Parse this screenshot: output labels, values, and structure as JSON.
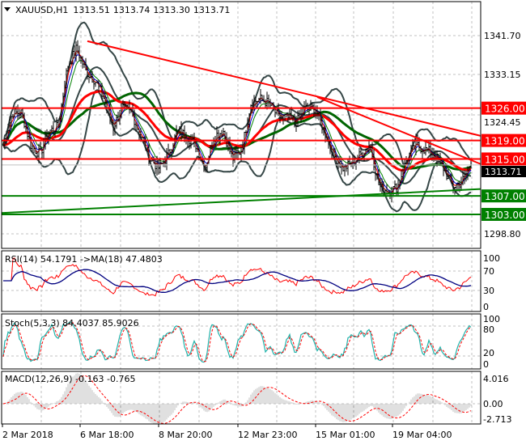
{
  "chart_data": {
    "type": "candlestick-ohlc",
    "symbol": "XAUUSD",
    "timeframe": "H1",
    "header": {
      "symbol_tf": "XAUUSD,H1",
      "open": "1313.51",
      "high": "1313.74",
      "low": "1313.30",
      "close": "1313.71"
    },
    "price_ticks": [
      "1341.70",
      "1333.15",
      "1324.45",
      "1298.80"
    ],
    "ylim": [
      1296.2,
      1349.5
    ],
    "close_path": [
      1318,
      1325,
      1325,
      1318,
      1316,
      1321,
      1322,
      1335,
      1339,
      1334,
      1332,
      1328,
      1322,
      1326,
      1325,
      1320,
      1315,
      1313,
      1316,
      1321,
      1320,
      1318,
      1313,
      1320,
      1321,
      1315,
      1317,
      1327,
      1328,
      1327,
      1324,
      1324,
      1323,
      1326,
      1326,
      1321,
      1316,
      1313,
      1314,
      1316,
      1318,
      1309,
      1308,
      1309,
      1315,
      1318,
      1317,
      1316,
      1313,
      1309,
      1310,
      1313.71
    ],
    "levels": [
      {
        "price": 1326.0,
        "label": "1326.00",
        "color": "#ff0000"
      },
      {
        "price": 1319.0,
        "label": "1319.00",
        "color": "#ff0000"
      },
      {
        "price": 1315.0,
        "label": "1315.00",
        "color": "#ff0000"
      },
      {
        "price": 1307.0,
        "label": "1307.00",
        "color": "#008000"
      },
      {
        "price": 1303.0,
        "label": "1303.00",
        "color": "#008000"
      }
    ],
    "current_price": {
      "price": 1313.71,
      "label": "1313.71"
    },
    "trendlines": [
      {
        "from_price": 1340.5,
        "to_price": 1320.0,
        "color": "#ff0000"
      },
      {
        "from_price": 1328.4,
        "to_price": 1313.9,
        "color": "#ff0000"
      },
      {
        "from_price": 1303.3,
        "to_price": 1308.5,
        "color": "#008000"
      }
    ],
    "x_ticks": [
      "2 Mar 2018",
      "6 Mar 18:00",
      "8 Mar 20:00",
      "12 Mar 23:00",
      "15 Mar 01:00",
      "19 Mar 04:00"
    ],
    "grid": true,
    "rsi": {
      "label": "RSI(14) 54.1791  ->MA(18) 47.4803",
      "ticks": [
        "100",
        "70",
        "30",
        "0"
      ],
      "color": "#ff0000",
      "ma_color": "#000080"
    },
    "stoch": {
      "label": "Stoch(5,3,3) 84.4037 85.9026",
      "ticks": [
        "100",
        "80",
        "20",
        "0"
      ],
      "main_color": "#20b2aa",
      "signal_color": "#ff0000"
    },
    "macd": {
      "label": "MACD(12,26,9) -0.163 -0.765",
      "ticks": [
        "4.016",
        "0.00",
        "-2.713"
      ],
      "hist_color": "#c0c0c0",
      "signal_color": "#ff0000"
    }
  }
}
